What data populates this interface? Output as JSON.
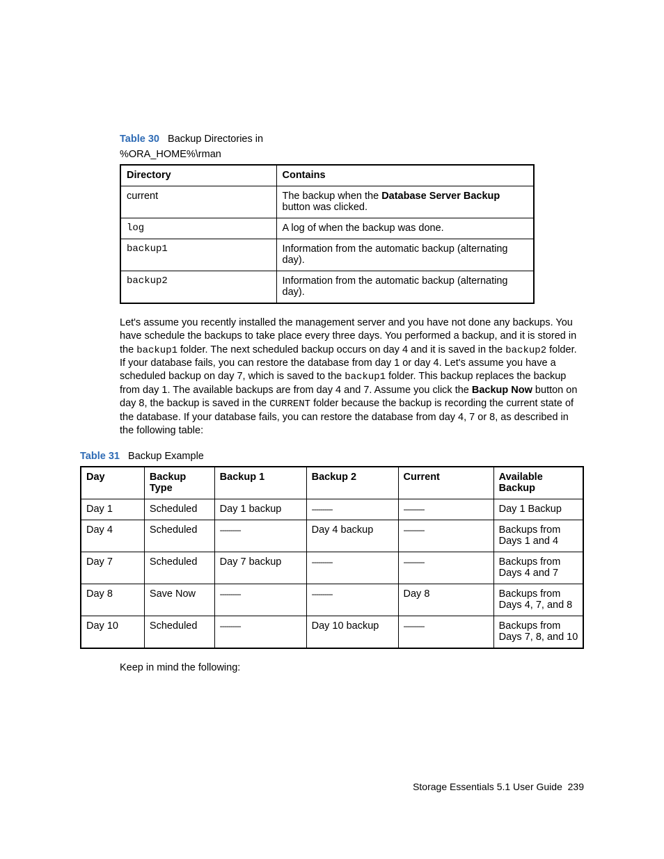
{
  "table30": {
    "label": "Table 30",
    "title": "Backup Directories in",
    "subtitle": "%ORA_HOME%\\rman",
    "headers": {
      "c1": "Directory",
      "c2": "Contains"
    },
    "rows": [
      {
        "dir": "current",
        "mono": false,
        "contains_pre": "The backup when the ",
        "contains_bold": "Database Server Backup",
        "contains_post": " button was clicked."
      },
      {
        "dir": "log",
        "mono": true,
        "contains": "A log of when the backup was done."
      },
      {
        "dir": "backup1",
        "mono": true,
        "contains": "Information from the automatic backup (alternating day)."
      },
      {
        "dir": "backup2",
        "mono": true,
        "contains": "Information from the automatic backup (alternating day)."
      }
    ]
  },
  "paragraph": {
    "t1": "Let's assume you recently installed the management server and you have not done any backups. You have schedule the backups to take place every three days. You performed a backup, and it is stored in the ",
    "m1": "backup1",
    "t2": " folder. The next scheduled backup occurs on day 4 and it is saved in the ",
    "m2": "backup2",
    "t3": " folder. If your database fails, you can restore the database from day 1 or day 4. Let's assume you have a scheduled backup on day 7, which is saved to the ",
    "m3": "backup1",
    "t4": " folder. This backup replaces the backup from day 1. The available backups are from day 4 and 7. Assume you click the ",
    "b1": "Backup Now",
    "t5": " button on day 8, the backup is saved in the ",
    "m4": "CURRENT",
    "t6": " folder because the backup is recording the current state of the database. If your database fails, you can restore the database from day 4, 7 or 8, as described in the following table:"
  },
  "table31": {
    "label": "Table 31",
    "title": "Backup Example",
    "headers": {
      "c1": "Day",
      "c2": "Backup Type",
      "c3": "Backup 1",
      "c4": "Backup 2",
      "c5": "Current",
      "c6": "Available Backup"
    },
    "dash": "----------",
    "rows": [
      {
        "day": "Day 1",
        "type": "Scheduled",
        "b1": "Day 1 backup",
        "b2": null,
        "cur": null,
        "avail": "Day 1 Backup"
      },
      {
        "day": "Day 4",
        "type": "Scheduled",
        "b1": null,
        "b2": "Day 4 backup",
        "cur": null,
        "avail": "Backups from Days 1 and 4"
      },
      {
        "day": "Day 7",
        "type": "Scheduled",
        "b1": "Day 7 backup",
        "b2": null,
        "cur": null,
        "avail": "Backups from Days 4 and 7"
      },
      {
        "day": "Day 8",
        "type": "Save Now",
        "b1": null,
        "b2": null,
        "cur": "Day 8",
        "avail": "Backups from Days 4, 7, and 8"
      },
      {
        "day": "Day 10",
        "type": "Scheduled",
        "b1": null,
        "b2": "Day 10 backup",
        "cur": null,
        "avail": "Backups from Days 7, 8, and 10"
      }
    ]
  },
  "closing": "Keep in mind the following:",
  "footer": {
    "text": "Storage Essentials 5.1 User Guide",
    "page": "239"
  }
}
